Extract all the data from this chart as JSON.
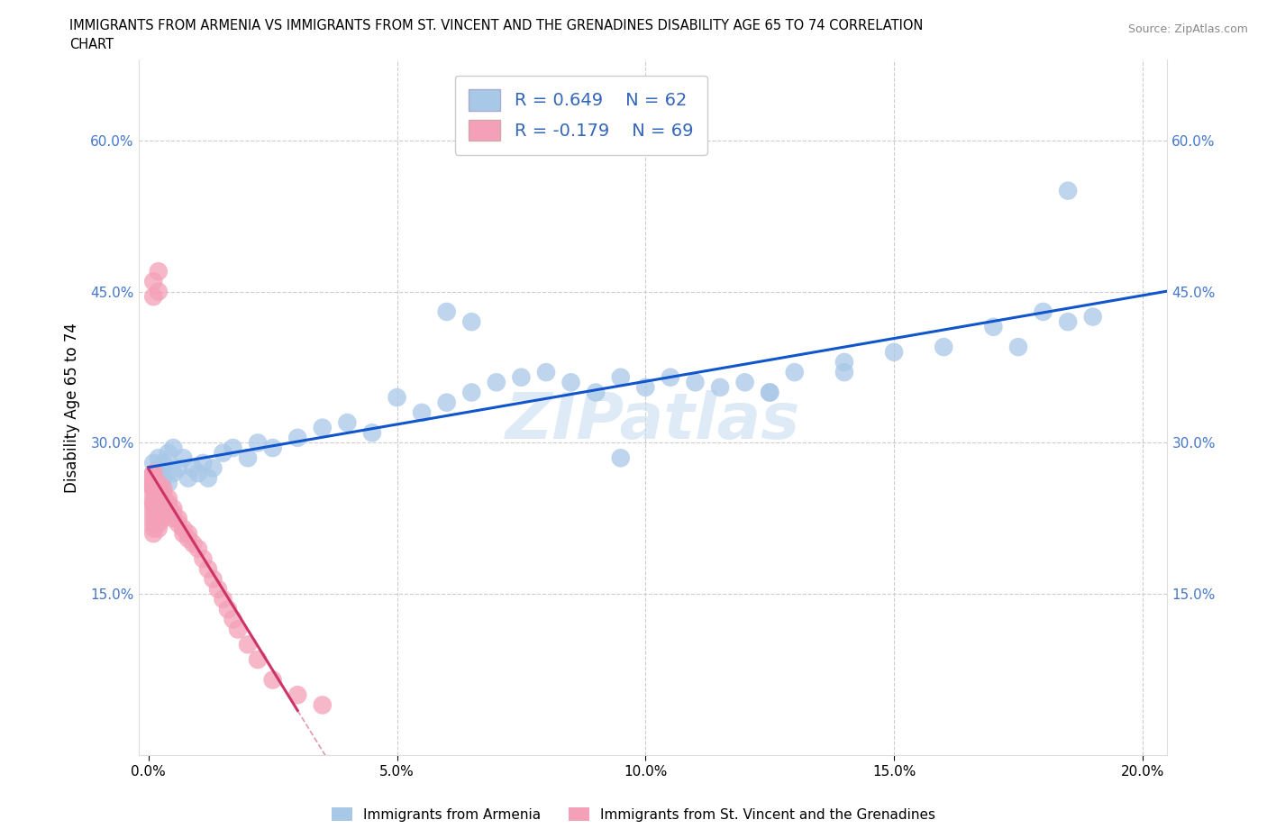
{
  "title_line1": "IMMIGRANTS FROM ARMENIA VS IMMIGRANTS FROM ST. VINCENT AND THE GRENADINES DISABILITY AGE 65 TO 74 CORRELATION",
  "title_line2": "CHART",
  "source_text": "Source: ZipAtlas.com",
  "ylabel": "Disability Age 65 to 74",
  "xlim": [
    -0.002,
    0.205
  ],
  "ylim": [
    -0.01,
    0.68
  ],
  "xticks": [
    0.0,
    0.05,
    0.1,
    0.15,
    0.2
  ],
  "xticklabels": [
    "0.0%",
    "5.0%",
    "10.0%",
    "15.0%",
    "20.0%"
  ],
  "yticks": [
    0.0,
    0.15,
    0.3,
    0.45,
    0.6
  ],
  "yticklabels_left": [
    "",
    "15.0%",
    "30.0%",
    "45.0%",
    "60.0%"
  ],
  "yticklabels_right": [
    "",
    "15.0%",
    "30.0%",
    "45.0%",
    "60.0%"
  ],
  "color_armenia": "#a8c8e8",
  "color_svg": "#f4a0b8",
  "trend_armenia_color": "#1055cc",
  "trend_svg_color": "#cc3366",
  "watermark": "ZIPatlas",
  "legend_r_armenia": "R = 0.649",
  "legend_n_armenia": "N = 62",
  "legend_r_svg": "R = -0.179",
  "legend_n_svg": "N = 69",
  "legend_label_armenia": "Immigrants from Armenia",
  "legend_label_svg": "Immigrants from St. Vincent and the Grenadines",
  "armenia_x": [
    0.001,
    0.001,
    0.001,
    0.002,
    0.002,
    0.002,
    0.002,
    0.003,
    0.003,
    0.003,
    0.004,
    0.004,
    0.005,
    0.005,
    0.006,
    0.007,
    0.008,
    0.009,
    0.01,
    0.011,
    0.012,
    0.013,
    0.015,
    0.017,
    0.02,
    0.022,
    0.025,
    0.03,
    0.035,
    0.04,
    0.045,
    0.05,
    0.055,
    0.06,
    0.065,
    0.07,
    0.075,
    0.08,
    0.085,
    0.09,
    0.095,
    0.1,
    0.105,
    0.11,
    0.115,
    0.12,
    0.125,
    0.13,
    0.14,
    0.15,
    0.16,
    0.17,
    0.175,
    0.18,
    0.185,
    0.19,
    0.06,
    0.065,
    0.095,
    0.125,
    0.14,
    0.185
  ],
  "armenia_y": [
    0.255,
    0.27,
    0.28,
    0.265,
    0.275,
    0.285,
    0.26,
    0.27,
    0.265,
    0.28,
    0.26,
    0.29,
    0.27,
    0.295,
    0.275,
    0.285,
    0.265,
    0.275,
    0.27,
    0.28,
    0.265,
    0.275,
    0.29,
    0.295,
    0.285,
    0.3,
    0.295,
    0.305,
    0.315,
    0.32,
    0.31,
    0.345,
    0.33,
    0.34,
    0.35,
    0.36,
    0.365,
    0.37,
    0.36,
    0.35,
    0.365,
    0.355,
    0.365,
    0.36,
    0.355,
    0.36,
    0.35,
    0.37,
    0.37,
    0.39,
    0.395,
    0.415,
    0.395,
    0.43,
    0.42,
    0.425,
    0.43,
    0.42,
    0.285,
    0.35,
    0.38,
    0.55
  ],
  "svg_x": [
    0.001,
    0.001,
    0.001,
    0.001,
    0.001,
    0.001,
    0.001,
    0.001,
    0.001,
    0.001,
    0.001,
    0.001,
    0.001,
    0.001,
    0.001,
    0.001,
    0.001,
    0.001,
    0.001,
    0.001,
    0.002,
    0.002,
    0.002,
    0.002,
    0.002,
    0.002,
    0.002,
    0.002,
    0.002,
    0.002,
    0.003,
    0.003,
    0.003,
    0.003,
    0.003,
    0.003,
    0.003,
    0.004,
    0.004,
    0.004,
    0.004,
    0.005,
    0.005,
    0.005,
    0.006,
    0.006,
    0.007,
    0.007,
    0.008,
    0.008,
    0.009,
    0.01,
    0.011,
    0.012,
    0.013,
    0.014,
    0.015,
    0.016,
    0.017,
    0.018,
    0.02,
    0.022,
    0.025,
    0.03,
    0.035,
    0.001,
    0.001,
    0.002,
    0.002
  ],
  "svg_y": [
    0.255,
    0.26,
    0.265,
    0.27,
    0.255,
    0.26,
    0.265,
    0.27,
    0.255,
    0.26,
    0.24,
    0.245,
    0.25,
    0.235,
    0.24,
    0.23,
    0.225,
    0.22,
    0.215,
    0.21,
    0.26,
    0.255,
    0.25,
    0.245,
    0.24,
    0.235,
    0.23,
    0.225,
    0.22,
    0.215,
    0.255,
    0.25,
    0.245,
    0.24,
    0.235,
    0.23,
    0.225,
    0.245,
    0.24,
    0.235,
    0.23,
    0.235,
    0.23,
    0.225,
    0.225,
    0.22,
    0.215,
    0.21,
    0.21,
    0.205,
    0.2,
    0.195,
    0.185,
    0.175,
    0.165,
    0.155,
    0.145,
    0.135,
    0.125,
    0.115,
    0.1,
    0.085,
    0.065,
    0.05,
    0.04,
    0.46,
    0.445,
    0.47,
    0.45
  ]
}
